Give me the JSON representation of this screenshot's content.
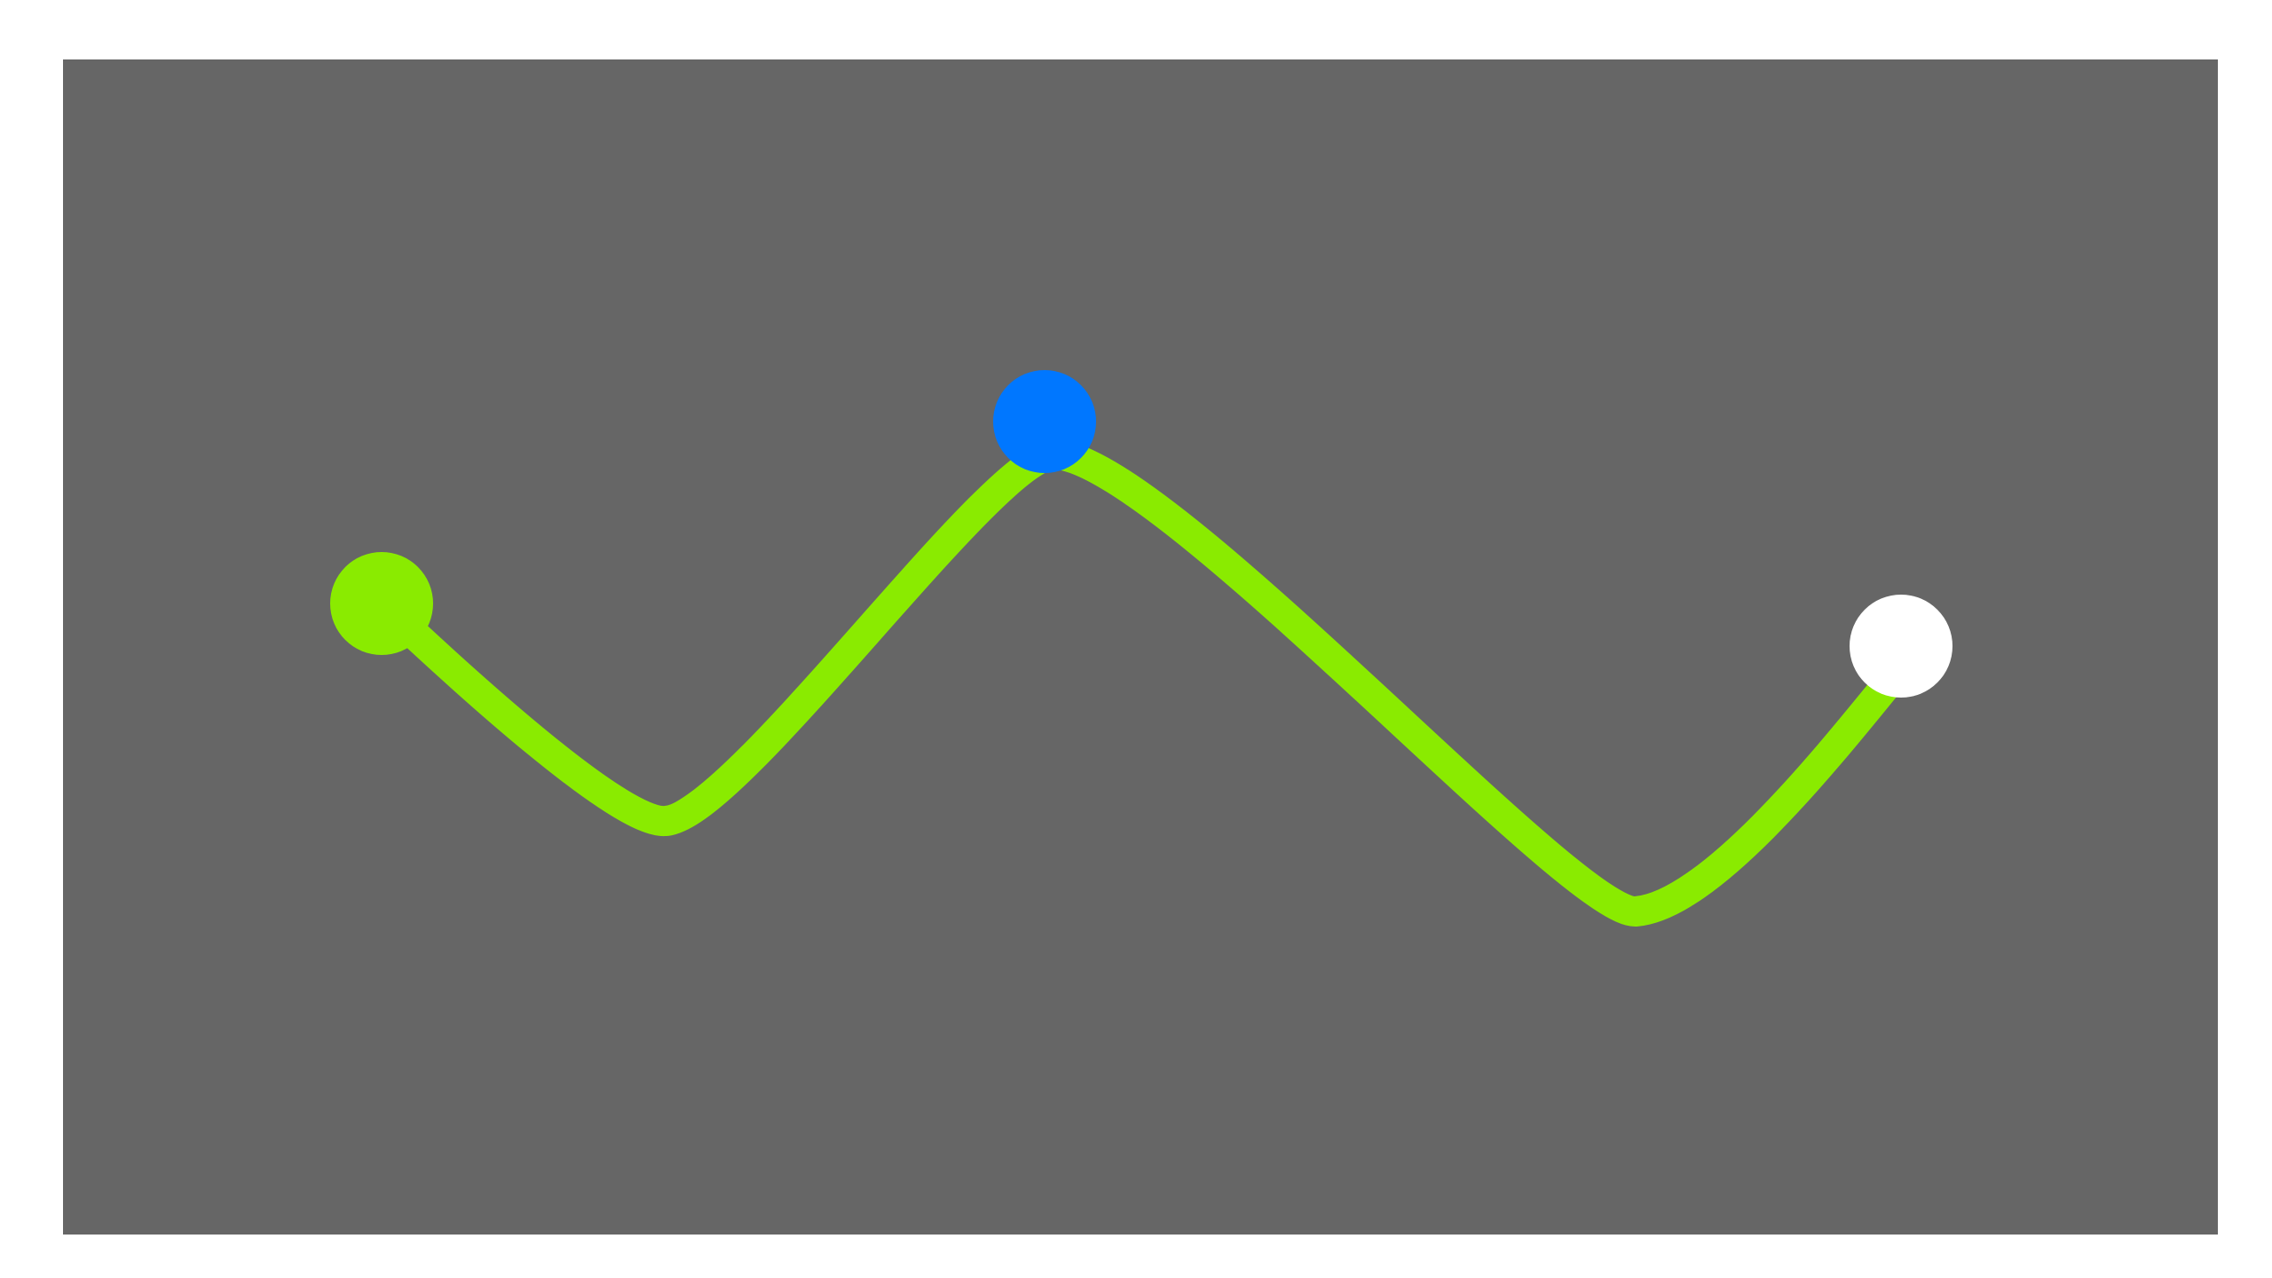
{
  "colors": {
    "page_background": "#ffffff",
    "canvas_background": "#666666",
    "path_stroke": "#8aeb00",
    "start_point": "#8aeb00",
    "waypoint": "#0077ff",
    "end_point": "#ffffff"
  },
  "path": {
    "description_points": 5,
    "markers": [
      {
        "role": "start",
        "color_key": "start_point"
      },
      {
        "role": "waypoint",
        "color_key": "waypoint"
      },
      {
        "role": "end",
        "color_key": "end_point"
      }
    ]
  }
}
